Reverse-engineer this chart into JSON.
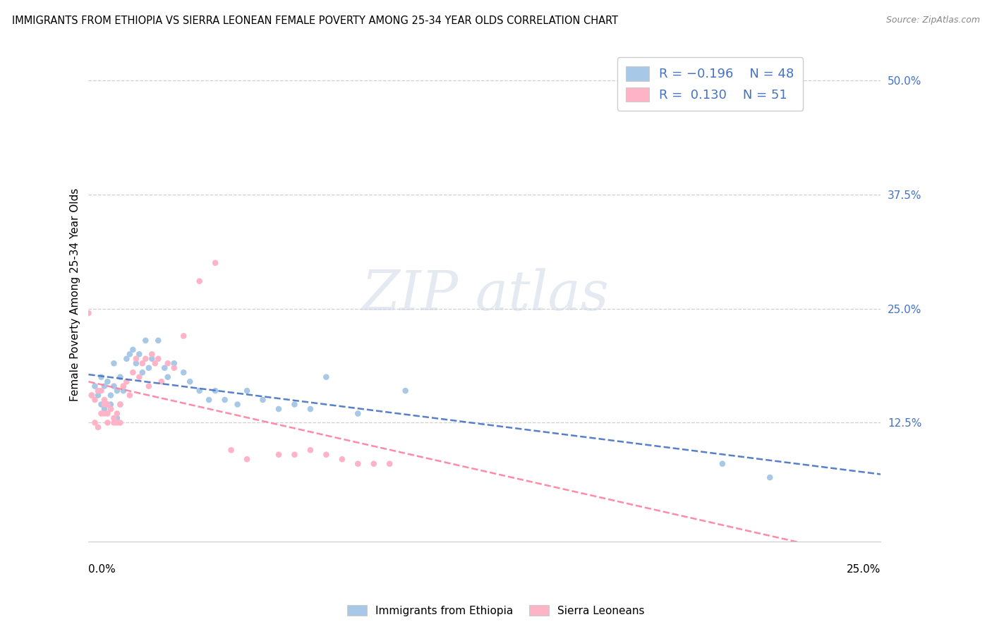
{
  "title": "IMMIGRANTS FROM ETHIOPIA VS SIERRA LEONEAN FEMALE POVERTY AMONG 25-34 YEAR OLDS CORRELATION CHART",
  "source": "Source: ZipAtlas.com",
  "ylabel": "Female Poverty Among 25-34 Year Olds",
  "ytick_vals": [
    0.125,
    0.25,
    0.375,
    0.5
  ],
  "ytick_labels": [
    "12.5%",
    "25.0%",
    "37.5%",
    "50.0%"
  ],
  "xlim": [
    0.0,
    0.25
  ],
  "ylim": [
    -0.005,
    0.535
  ],
  "color_blue": "#A8C8E8",
  "color_pink": "#FFB3C6",
  "color_blue_dark": "#4472C4",
  "color_pink_dark": "#FF7F9E",
  "blue_scatter_x": [
    0.001,
    0.002,
    0.003,
    0.004,
    0.004,
    0.005,
    0.005,
    0.006,
    0.006,
    0.007,
    0.007,
    0.008,
    0.008,
    0.009,
    0.009,
    0.01,
    0.01,
    0.011,
    0.012,
    0.013,
    0.014,
    0.015,
    0.016,
    0.017,
    0.018,
    0.019,
    0.02,
    0.022,
    0.024,
    0.025,
    0.027,
    0.03,
    0.032,
    0.035,
    0.038,
    0.04,
    0.043,
    0.047,
    0.05,
    0.055,
    0.06,
    0.065,
    0.07,
    0.075,
    0.085,
    0.1,
    0.2,
    0.215
  ],
  "blue_scatter_y": [
    0.155,
    0.165,
    0.155,
    0.175,
    0.145,
    0.165,
    0.14,
    0.17,
    0.145,
    0.155,
    0.145,
    0.19,
    0.165,
    0.13,
    0.16,
    0.175,
    0.145,
    0.16,
    0.195,
    0.2,
    0.205,
    0.19,
    0.2,
    0.18,
    0.215,
    0.185,
    0.195,
    0.215,
    0.185,
    0.175,
    0.19,
    0.18,
    0.17,
    0.16,
    0.15,
    0.16,
    0.15,
    0.145,
    0.16,
    0.15,
    0.14,
    0.145,
    0.14,
    0.175,
    0.135,
    0.16,
    0.08,
    0.065
  ],
  "pink_scatter_x": [
    0.0,
    0.001,
    0.002,
    0.002,
    0.003,
    0.003,
    0.004,
    0.004,
    0.005,
    0.005,
    0.005,
    0.006,
    0.006,
    0.006,
    0.007,
    0.007,
    0.008,
    0.008,
    0.009,
    0.009,
    0.01,
    0.01,
    0.011,
    0.011,
    0.012,
    0.013,
    0.014,
    0.015,
    0.016,
    0.017,
    0.018,
    0.019,
    0.02,
    0.021,
    0.022,
    0.023,
    0.025,
    0.027,
    0.03,
    0.035,
    0.04,
    0.045,
    0.05,
    0.06,
    0.065,
    0.07,
    0.075,
    0.08,
    0.085,
    0.09,
    0.095
  ],
  "pink_scatter_y": [
    0.245,
    0.155,
    0.15,
    0.125,
    0.16,
    0.12,
    0.16,
    0.135,
    0.15,
    0.145,
    0.135,
    0.145,
    0.135,
    0.125,
    0.14,
    0.14,
    0.13,
    0.125,
    0.135,
    0.125,
    0.145,
    0.125,
    0.165,
    0.165,
    0.17,
    0.155,
    0.18,
    0.195,
    0.175,
    0.19,
    0.195,
    0.165,
    0.2,
    0.19,
    0.195,
    0.17,
    0.19,
    0.185,
    0.22,
    0.28,
    0.3,
    0.095,
    0.085,
    0.09,
    0.09,
    0.095,
    0.09,
    0.085,
    0.08,
    0.08,
    0.08
  ],
  "legend1_r": "R = −0.196",
  "legend1_n": "N = 48",
  "legend2_r": "R =  0.130",
  "legend2_n": "N = 51",
  "legend1_label": "Immigrants from Ethiopia",
  "legend2_label": "Sierra Leoneans"
}
